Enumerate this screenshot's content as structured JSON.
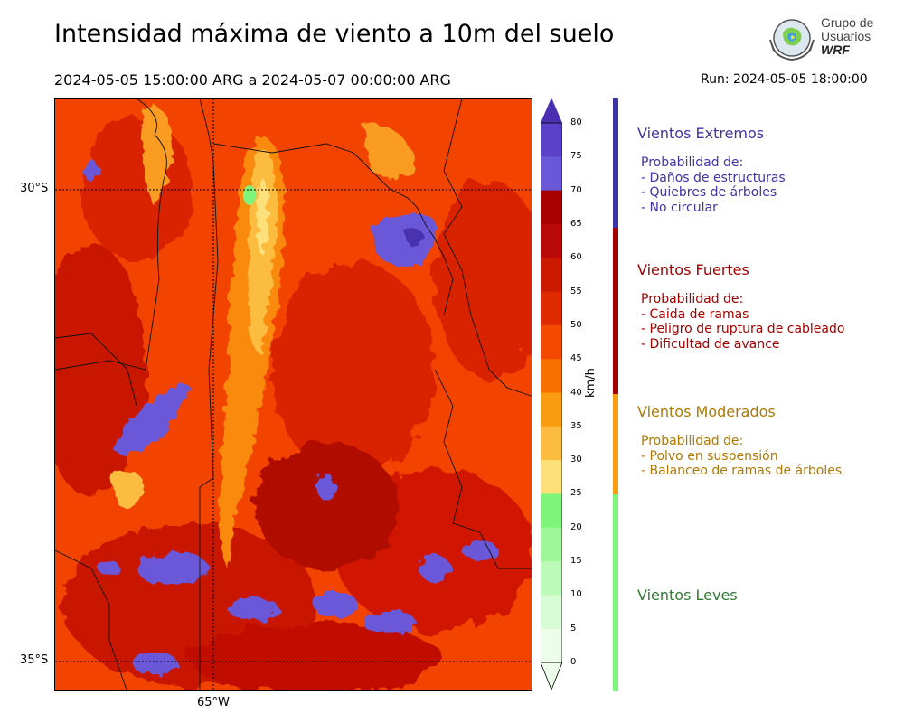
{
  "title": "Intensidad máxima de viento a 10m del suelo",
  "period": "2024-05-05 15:00:00 ARG  a  2024-05-07 00:00:00 ARG",
  "run": "Run: 2024-05-05 18:00:00",
  "logo": {
    "line1": "Grupo de",
    "line2": "Usuarios",
    "line3": "WRF"
  },
  "map": {
    "lat_labels": [
      "30°S",
      "35°S"
    ],
    "lon_labels": [
      "65°W"
    ]
  },
  "colorbar": {
    "unit": "km/h",
    "ticks": [
      "80",
      "75",
      "70",
      "65",
      "60",
      "55",
      "50",
      "45",
      "40",
      "35",
      "30",
      "25",
      "20",
      "15",
      "10",
      "5",
      "0"
    ],
    "colors": [
      "#4a30b0",
      "#5a42c8",
      "#6a58d8",
      "#a80000",
      "#b80808",
      "#cc1a00",
      "#e02a00",
      "#f44a00",
      "#f87000",
      "#fa9c10",
      "#fcbc40",
      "#fde07a",
      "#7ef57a",
      "#9ef89a",
      "#bcfab8",
      "#d8fcd4",
      "#ecfde9"
    ]
  },
  "categories": [
    {
      "title": "Vientos Extremos",
      "color": "#3f33a8",
      "lines": [
        "Probabilidad de:",
        "- Daños de estructuras",
        "- Quiebres de árboles",
        "- No circular"
      ]
    },
    {
      "title": "Vientos Fuertes",
      "color": "#a30000",
      "lines": [
        "Probabilidad de:",
        "- Caida de ramas",
        "- Peligro de ruptura de cableado",
        "- Dificultad de avance"
      ]
    },
    {
      "title": "Vientos Moderados",
      "color": "#b07800",
      "lines": [
        "Probabilidad de:",
        "- Polvo en suspensión",
        "- Balanceo de ramas de árboles"
      ]
    },
    {
      "title": "Vientos Leves",
      "color": "#2e7d32",
      "lines": []
    }
  ]
}
